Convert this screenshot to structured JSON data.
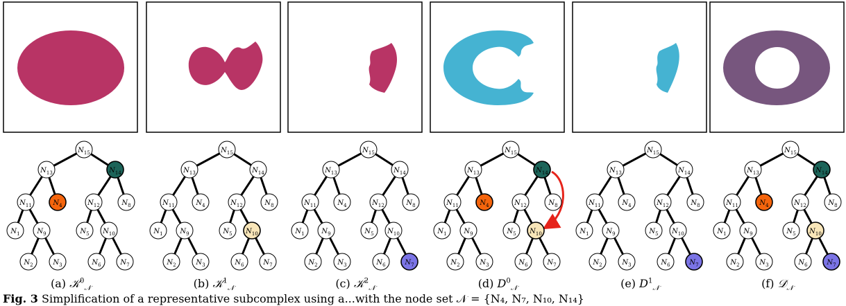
{
  "captions": [
    {
      "label": "(a)",
      "symbol": "𝒦",
      "sup": "0",
      "sub": "𝒩"
    },
    {
      "label": "(b)",
      "symbol": "𝒦",
      "sup": "1",
      "sub": "𝒩"
    },
    {
      "label": "(c)",
      "symbol": "𝒦",
      "sup": "2",
      "sub": "𝒩"
    },
    {
      "label": "(d)",
      "symbol": "D",
      "sup": "0",
      "sub": "𝒩"
    },
    {
      "label": "(e)",
      "symbol": "D",
      "sup": "1",
      "sub": "𝒩"
    },
    {
      "label": "(f)",
      "symbol": "𝒟̇",
      "sup": "",
      "sub": "𝒩"
    }
  ],
  "footer": {
    "fig_label": "Fig. 3",
    "text": "Simplification of a representative subcomplex using a...with the node set 𝒩 = {N₄, N₇, N₁₀, N₁₄}"
  },
  "colors": {
    "shape_crimson": "#b83465",
    "shape_blue": "#45b3d2",
    "shape_purple": "#77567e",
    "node_green": "#1c6459",
    "node_orange": "#f5650d",
    "node_yellow": "#f9e6b9",
    "node_violet": "#7b74e6",
    "arrow_red": "#e6231a"
  },
  "tree": {
    "node_labels": {
      "N15": "N15",
      "N13": "N13",
      "N14": "N14",
      "N11": "N11",
      "N4": "N4",
      "N12": "N12",
      "N8": "N8",
      "N1": "N1",
      "N9": "N9",
      "N5": "N5",
      "N10": "N10",
      "N2": "N2",
      "N3": "N3",
      "N6": "N6",
      "N7": "N7"
    }
  },
  "panels": [
    {
      "shape": "ellipse",
      "highlight": {
        "N14": "green",
        "N4": "orange"
      },
      "arrow": false
    },
    {
      "shape": "blob",
      "highlight": {
        "N10": "yellow"
      },
      "arrow": false
    },
    {
      "shape": "small",
      "highlight": {
        "N7": "violet"
      },
      "arrow": false
    },
    {
      "shape": "cshape",
      "highlight": {
        "N14": "green",
        "N4": "orange",
        "N10": "yellow"
      },
      "arrow": true
    },
    {
      "shape": "smallblue",
      "highlight": {
        "N7": "violet"
      },
      "arrow": false
    },
    {
      "shape": "ring",
      "highlight": {
        "N14": "green",
        "N4": "orange",
        "N10": "yellow",
        "N7": "violet"
      },
      "arrow": false
    }
  ]
}
